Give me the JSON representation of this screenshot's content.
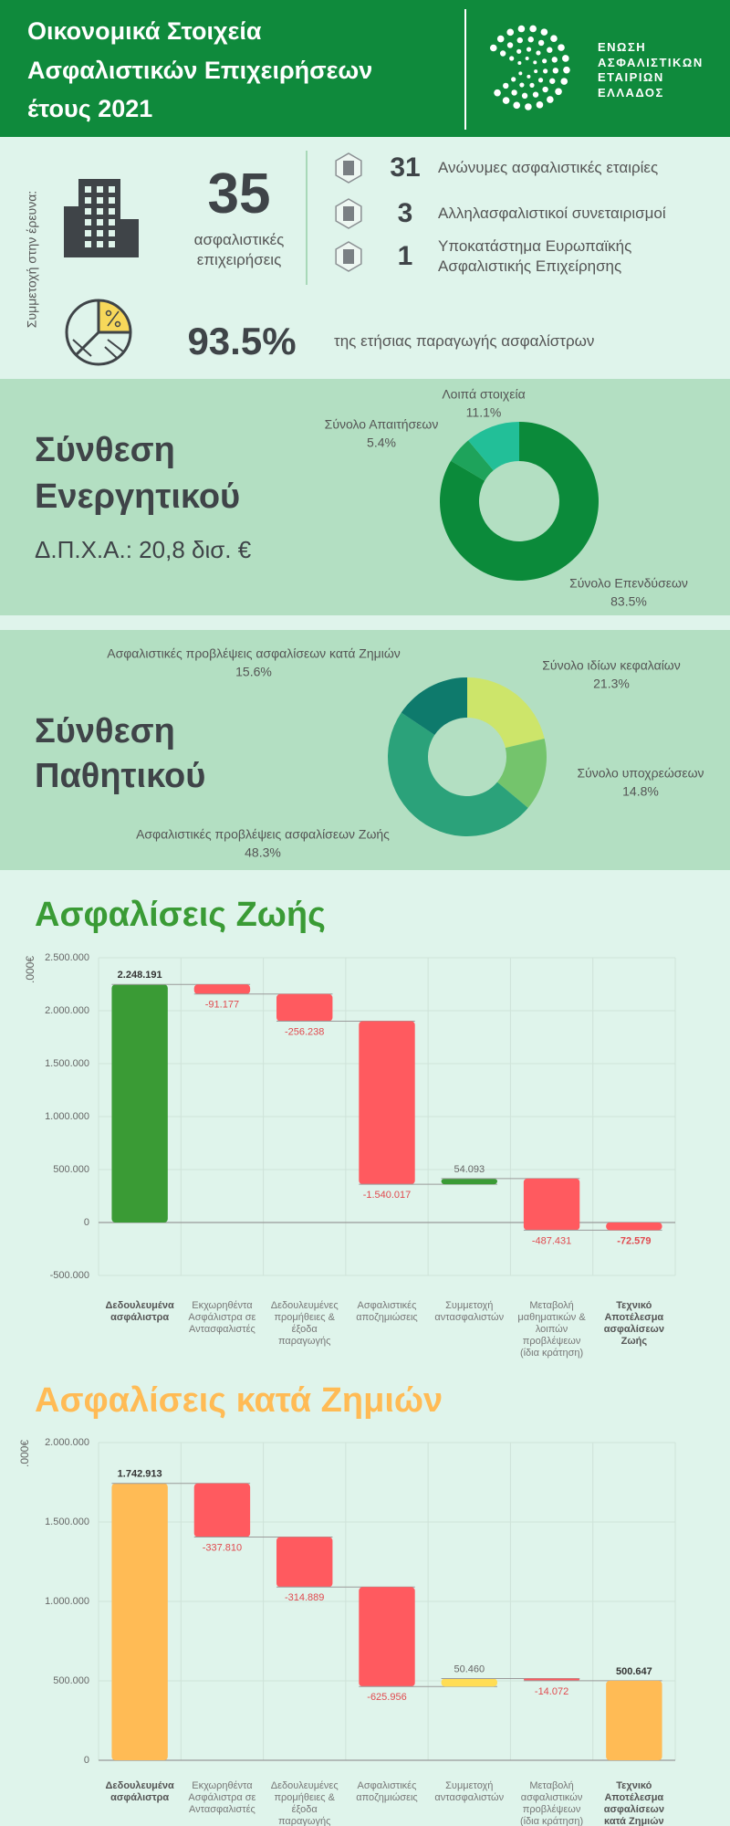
{
  "header": {
    "title": [
      "Οικονομικά Στοιχεία",
      "Ασφαλιστικών Επιχειρήσεων",
      "έτους 2021"
    ],
    "logo": [
      "ΕΝΩΣΗ",
      "ΑΣΦΑΛΙΣΤΙΚΩΝ",
      "ΕΤΑΙΡΙΩΝ",
      "ΕΛΛΑΔΟΣ"
    ]
  },
  "participation": {
    "label": "Συμμετοχή στην έρευνα:",
    "total": 35,
    "total_label": "ασφαλιστικές επιχειρήσεις",
    "breakdown": [
      {
        "count": 31,
        "label": "Ανώνυμες ασφαλιστικές εταιρίες"
      },
      {
        "count": 3,
        "label": "Αλληλασφαλιστικοί συνεταιρισμοί"
      },
      {
        "count": 1,
        "label": "Υποκατάστημα Ευρωπαϊκής Ασφαλιστικής Επιχείρησης"
      }
    ],
    "share": "93.5%",
    "share_label": "της ετήσιας παραγωγής ασφαλίστρων"
  },
  "chart_data": [
    {
      "type": "donut",
      "title": "Σύνθεση Ενεργητικού",
      "subtitle": "Δ.Π.Χ.Α.: 20,8 δισ. €",
      "categories": [
        "Σύνολο Επενδύσεων",
        "Σύνολο Απαιτήσεων",
        "Λοιπά στοιχεία"
      ],
      "values": [
        83.5,
        5.4,
        11.1
      ],
      "value_labels": [
        "83.5%",
        "5.4%",
        "11.1%"
      ],
      "colors": [
        "#0b8a3a",
        "#1ea35b",
        "#22bf98"
      ]
    },
    {
      "type": "donut",
      "title": "Σύνθεση Παθητικού",
      "categories": [
        "Σύνολο ιδίων κεφαλαίων",
        "Σύνολο υποχρεώσεων",
        "Ασφαλιστικές προβλέψεις ασφαλίσεων Ζωής",
        "Ασφαλιστικές προβλέψεις ασφαλίσεων κατά Ζημιών"
      ],
      "values": [
        21.3,
        14.8,
        48.3,
        15.6
      ],
      "value_labels": [
        "21.3%",
        "14.8%",
        "48.3%",
        "15.6%"
      ],
      "colors": [
        "#cde56a",
        "#74c46c",
        "#2ba27a",
        "#0e7a6c"
      ]
    },
    {
      "type": "waterfall",
      "title": "Ασφαλίσεις Ζωής",
      "y_label": ".000€",
      "categories": [
        "Δεδουλευμένα ασφάλιστρα",
        "Εκχωρηθέντα Ασφάλιστρα σε Αντασφαλιστές",
        "Δεδουλευμένες προμήθειες & έξοδα παραγωγής",
        "Ασφαλιστικές αποζημιώσεις",
        "Συμμετοχή αντασφαλιστών",
        "Μεταβολή μαθηματικών & λοιπών προβλέψεων (ίδια κράτηση)",
        "Τεχνικό Αποτέλεσμα ασφαλίσεων Ζωής"
      ],
      "values": [
        2248191,
        -91177,
        -256238,
        -1540017,
        54093,
        -487431,
        -72579
      ],
      "value_labels": [
        "2.248.191",
        "-91.177",
        "-256.238",
        "-1.540.017",
        "54.093",
        "-487.431",
        "-72.579"
      ],
      "colors": {
        "total": "#3a9b35",
        "increase": "#3a9b35",
        "decrease": "#ff5a5f"
      },
      "ylim": [
        -500000,
        2500000
      ],
      "yticks": [
        {
          "value": -500000,
          "label": "-500.000"
        },
        0,
        {
          "value": 500000,
          "label": "500.000"
        },
        {
          "value": 1000000,
          "label": "1.000.000"
        },
        {
          "value": 1500000,
          "label": "1.500.000"
        },
        {
          "value": 2000000,
          "label": "2.000.000"
        },
        {
          "value": 2500000,
          "label": "2.500.000"
        }
      ],
      "grid": true
    },
    {
      "type": "waterfall",
      "title": "Ασφαλίσεις κατά Ζημιών",
      "y_label": ".000€",
      "categories": [
        "Δεδουλευμένα ασφάλιστρα",
        "Εκχωρηθέντα Ασφάλιστρα σε Αντασφαλιστές",
        "Δεδουλευμένες προμήθειες & έξοδα παραγωγής",
        "Ασφαλιστικές αποζημιώσεις",
        "Συμμετοχή αντασφαλιστών",
        "Μεταβολή ασφαλιστικών προβλέψεων (ίδια κράτηση)",
        "Τεχνικό Αποτέλεσμα ασφαλίσεων κατά Ζημιών"
      ],
      "values": [
        1742913,
        -337810,
        -314889,
        -625956,
        50460,
        -14072,
        500647
      ],
      "value_labels": [
        "1.742.913",
        "-337.810",
        "-314.889",
        "-625.956",
        "50.460",
        "-14.072",
        "500.647"
      ],
      "colors": {
        "total": "#ffbb55",
        "increase": "#ffdd55",
        "decrease": "#ff5a5f"
      },
      "ylim": [
        0,
        2000000
      ],
      "yticks": [
        0,
        {
          "value": 500000,
          "label": "500.000"
        },
        {
          "value": 1000000,
          "label": "1.000.000"
        },
        {
          "value": 1500000,
          "label": "1.500.000"
        },
        {
          "value": 2000000,
          "label": "2.000.000"
        }
      ],
      "grid": true
    }
  ]
}
